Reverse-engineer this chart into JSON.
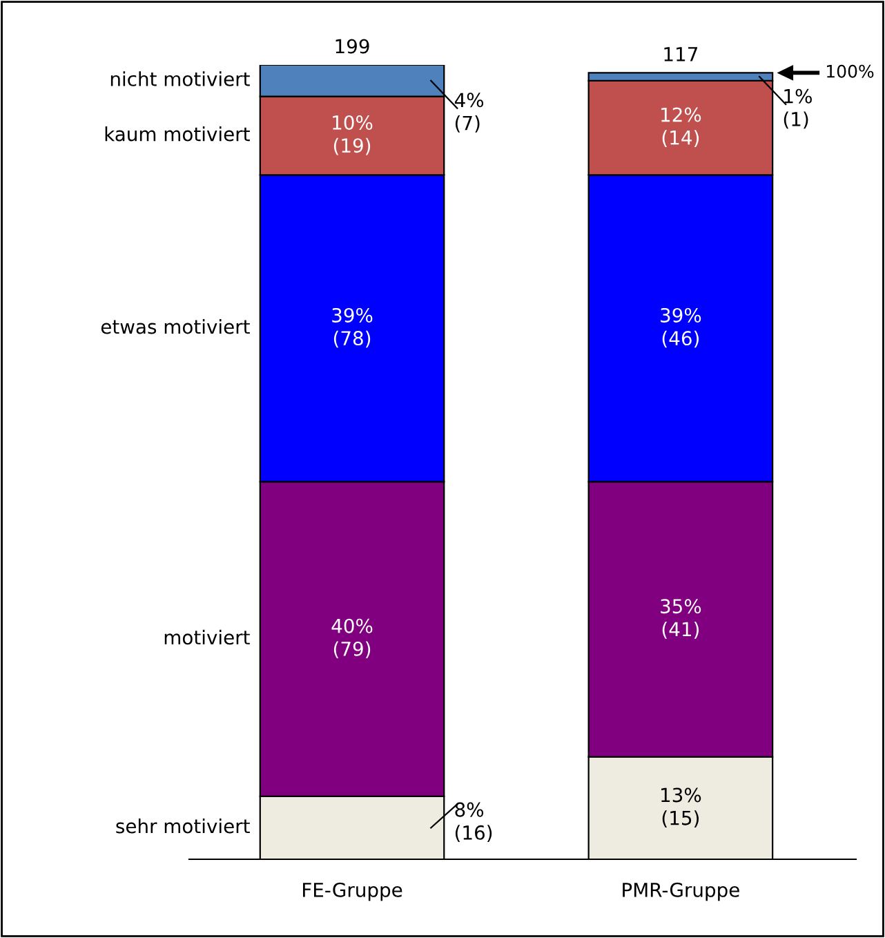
{
  "chart_data": {
    "type": "bar",
    "stacked": true,
    "legend": false,
    "grid": false,
    "categories": [
      "FE-Gruppe",
      "PMR-Gruppe"
    ],
    "series": [
      {
        "name": "sehr motiviert",
        "color": "#eeece1",
        "values": [
          8,
          13
        ],
        "value_labels": [
          "8%\n(16)",
          "13%\n(15)"
        ]
      },
      {
        "name": "motiviert",
        "color": "#800080",
        "values": [
          40,
          35
        ],
        "value_labels": [
          "40%\n(79)",
          "35%\n(41)"
        ]
      },
      {
        "name": "etwas motiviert",
        "color": "#0000ff",
        "values": [
          39,
          39
        ],
        "value_labels": [
          "39%\n(78)",
          "39%\n(46)"
        ]
      },
      {
        "name": "kaum motiviert",
        "color": "#c0504d",
        "values": [
          10,
          12
        ],
        "value_labels": [
          "10%\n(19)",
          "12%\n(14)"
        ]
      },
      {
        "name": "nicht motiviert",
        "color": "#4f81bd",
        "values": [
          4,
          1
        ],
        "value_labels": [
          "4%\n(7)",
          "1%\n(1)"
        ]
      }
    ],
    "annotations": [
      {
        "text": "199",
        "x": "FE-Gruppe",
        "y": 101
      },
      {
        "text": "117",
        "x": "PMR-Gruppe",
        "y": 100
      },
      "100%"
    ]
  }
}
